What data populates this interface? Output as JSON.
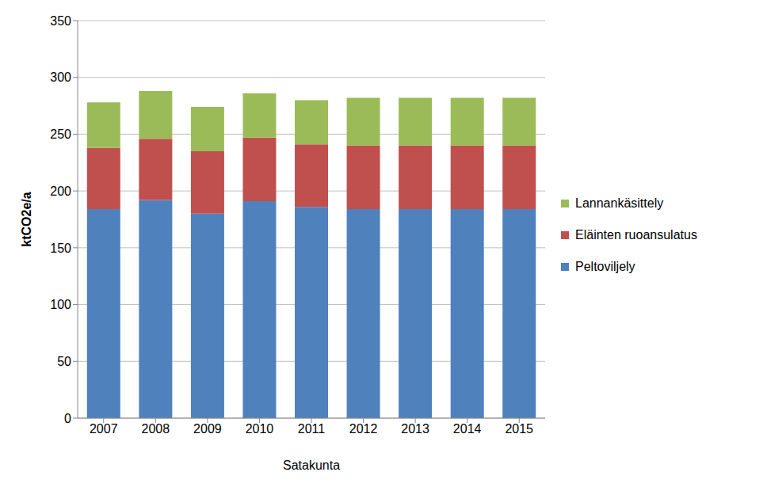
{
  "chart_data": {
    "type": "bar",
    "stacked": true,
    "xlabel": "Satakunta",
    "ylabel": "ktCO2e/a",
    "categories": [
      "2007",
      "2008",
      "2009",
      "2010",
      "2011",
      "2012",
      "2013",
      "2014",
      "2015"
    ],
    "series": [
      {
        "name": "Peltoviljely",
        "color": "#4f81bd",
        "values": [
          184,
          192,
          180,
          191,
          186,
          184,
          184,
          184,
          184
        ]
      },
      {
        "name": "Eläinten ruoansulatus",
        "color": "#c0504d",
        "values": [
          54,
          54,
          55,
          56,
          55,
          56,
          56,
          56,
          56
        ]
      },
      {
        "name": "Lannankäsittely",
        "color": "#9bbb59",
        "values": [
          40,
          42,
          39,
          39,
          39,
          42,
          42,
          42,
          42
        ]
      }
    ],
    "ylim": [
      0,
      350
    ],
    "yticks": [
      0,
      50,
      100,
      150,
      200,
      250,
      300,
      350
    ],
    "grid": true,
    "legend": "right"
  }
}
